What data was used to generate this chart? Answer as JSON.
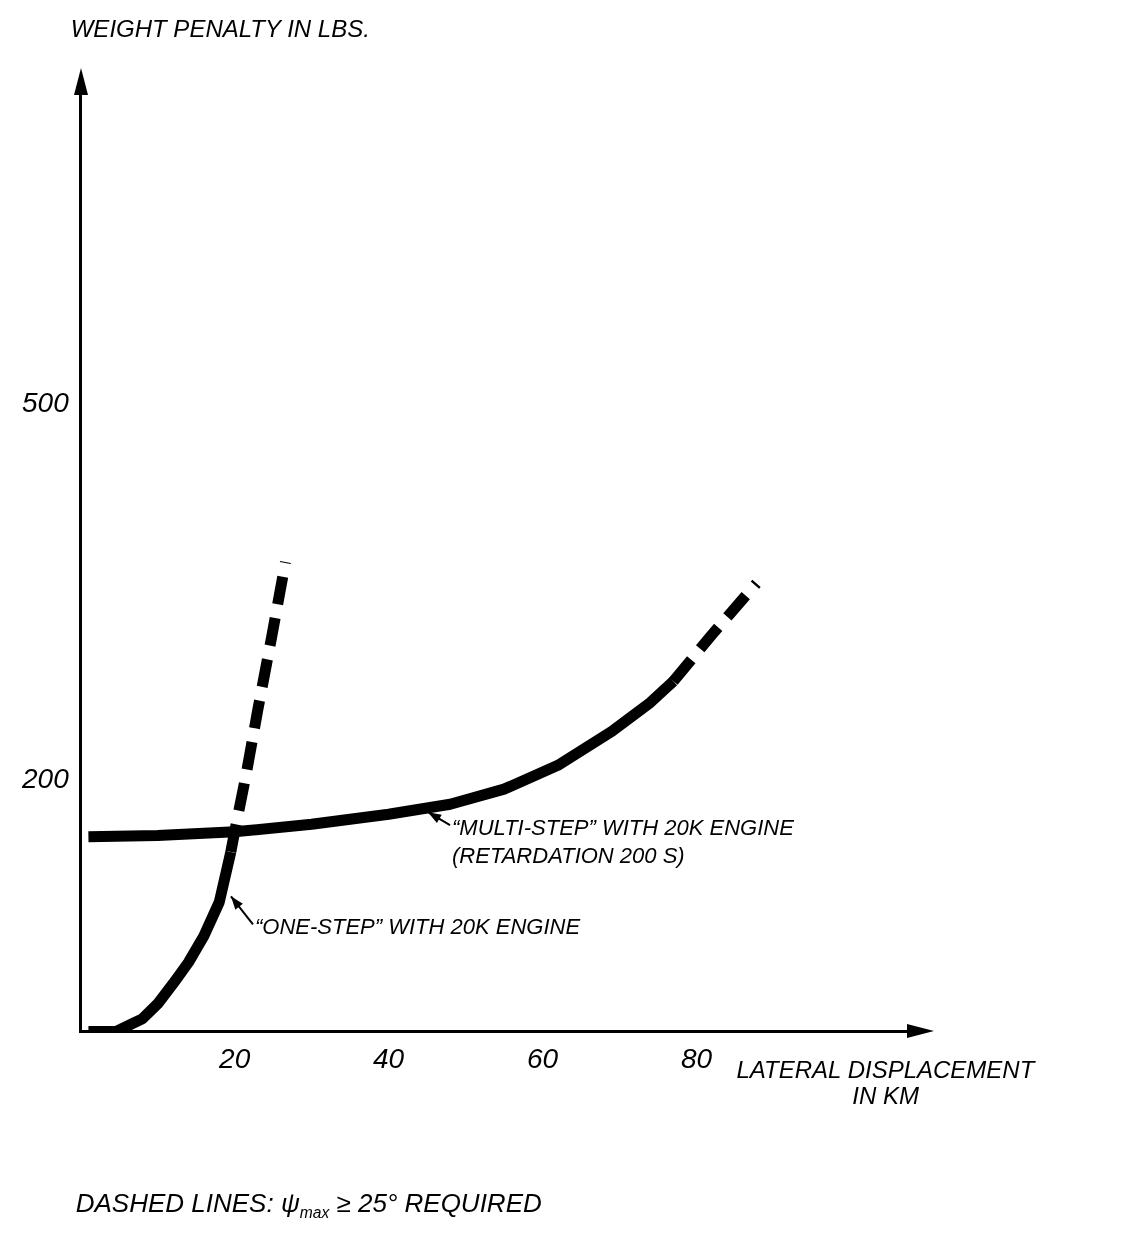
{
  "chart_data": {
    "type": "line",
    "ylabel": "WEIGHT PENALTY IN LBS.",
    "xlabel": "LATERAL DISPLACEMENT\nIN KM",
    "xlim": [
      0,
      108
    ],
    "xticks": [
      20,
      40,
      60,
      80
    ],
    "ylim": [
      0,
      750
    ],
    "yticks": [
      200,
      500
    ],
    "grid": false,
    "legend": false,
    "marker": "none",
    "series": [
      {
        "x": [
          1,
          10,
          20,
          30,
          40,
          48,
          55,
          62,
          69,
          74,
          77
        ],
        "values": [
          155,
          156,
          159,
          165,
          173,
          181,
          193,
          212,
          239,
          262,
          279
        ],
        "color": "#000000",
        "line_style": "solid"
      },
      {
        "x": [
          77,
          82,
          87.8
        ],
        "values": [
          279,
          316,
          357
        ],
        "color": "#000000",
        "line_style": "dashed"
      },
      {
        "x": [
          1,
          4.6,
          8,
          10,
          12,
          14,
          16,
          18,
          19.5
        ],
        "values": [
          0,
          0,
          10,
          22,
          38,
          55,
          76,
          103,
          143
        ],
        "color": "#000000",
        "line_style": "solid"
      },
      {
        "x": [
          19.5,
          20,
          21.5,
          23,
          24.8,
          26.6
        ],
        "values": [
          143,
          159,
          205,
          256,
          314,
          374
        ],
        "color": "#000000",
        "line_style": "dashed"
      }
    ],
    "annotations": [
      {
        "text": "“MULTI-STEP” WITH 20K ENGINE\n(RETARDATION 200 S)",
        "x": 44.6,
        "y": 177
      },
      {
        "text": "“ONE-STEP” WITH 20K ENGINE",
        "x": 19,
        "y": 110
      },
      "DASHED LINES: ψ$_{max}$ ≥ 25° REQUIRED"
    ]
  }
}
